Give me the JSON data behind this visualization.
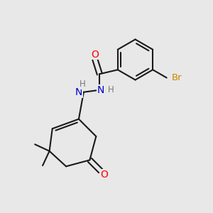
{
  "background_color": "#e8e8e8",
  "bond_color": "#1a1a1a",
  "bond_width": 1.5,
  "atom_colors": {
    "O": "#ff0000",
    "N": "#0000cc",
    "Br": "#cc8800",
    "H": "#777777",
    "C": "#1a1a1a"
  },
  "font_size_atom": 10,
  "font_size_small": 8.5
}
